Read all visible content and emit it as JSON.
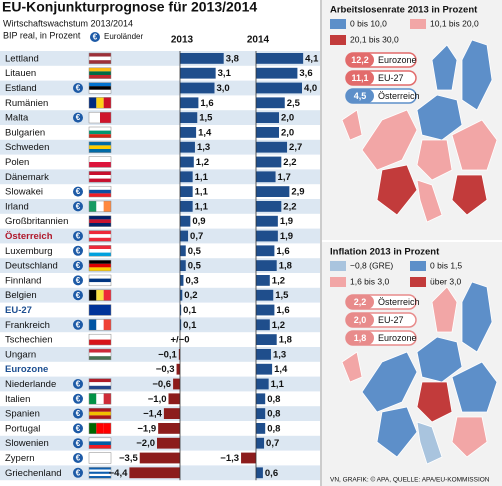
{
  "chart_data": {
    "type": "bar",
    "title": "EU-Konjunkturprognose für 2013/2014",
    "subtitle": "Wirtschaftswachstum 2013/2014",
    "unit_note": "BIP real, in Prozent",
    "euro_symbol": "€",
    "euro_legend": "Euroländer",
    "source": "VN, GRAFIK: © APA, QUELLE: APA/EU-KOMMISSION",
    "categories": [
      "Lettland",
      "Litauen",
      "Estland",
      "Rumänien",
      "Malta",
      "Bulgarien",
      "Schweden",
      "Polen",
      "Dänemark",
      "Slowakei",
      "Irland",
      "Großbritannien",
      "Österreich",
      "Luxemburg",
      "Deutschland",
      "Finnland",
      "Belgien",
      "EU-27",
      "Frankreich",
      "Tschechien",
      "Ungarn",
      "Eurozone",
      "Niederlande",
      "Italien",
      "Spanien",
      "Portugal",
      "Slowenien",
      "Zypern",
      "Griechenland"
    ],
    "euro_members": [
      false,
      false,
      true,
      false,
      true,
      false,
      false,
      false,
      false,
      true,
      true,
      false,
      true,
      true,
      true,
      true,
      true,
      false,
      true,
      false,
      false,
      false,
      true,
      true,
      true,
      true,
      true,
      true,
      true
    ],
    "highlight": [
      {
        "index": 12,
        "color": "#b0182b"
      },
      {
        "index": 17,
        "color": "#1d4f91"
      },
      {
        "index": 21,
        "color": "#1d4f91"
      }
    ],
    "flags": [
      {
        "dir": "h",
        "colors": [
          "#9e3039",
          "#ffffff",
          "#9e3039"
        ]
      },
      {
        "dir": "h",
        "colors": [
          "#fdb913",
          "#006a44",
          "#c1272d"
        ]
      },
      {
        "dir": "h",
        "colors": [
          "#0072ce",
          "#000000",
          "#ffffff"
        ]
      },
      {
        "dir": "v",
        "colors": [
          "#002b7f",
          "#fcd116",
          "#ce1126"
        ]
      },
      {
        "dir": "v",
        "colors": [
          "#ffffff",
          "#cf142b"
        ]
      },
      {
        "dir": "h",
        "colors": [
          "#ffffff",
          "#00966e",
          "#d62612"
        ]
      },
      {
        "dir": "h",
        "colors": [
          "#006aa7",
          "#fecc00",
          "#006aa7"
        ]
      },
      {
        "dir": "h",
        "colors": [
          "#ffffff",
          "#dc143c"
        ]
      },
      {
        "dir": "h",
        "colors": [
          "#c8102e",
          "#ffffff",
          "#c8102e"
        ]
      },
      {
        "dir": "h",
        "colors": [
          "#ffffff",
          "#0b4ea2",
          "#ee1c25"
        ]
      },
      {
        "dir": "v",
        "colors": [
          "#169b62",
          "#ffffff",
          "#ff883e"
        ]
      },
      {
        "dir": "h",
        "colors": [
          "#012169",
          "#c8102e",
          "#012169"
        ]
      },
      {
        "dir": "h",
        "colors": [
          "#ed2939",
          "#ffffff",
          "#ed2939"
        ]
      },
      {
        "dir": "h",
        "colors": [
          "#ed2939",
          "#ffffff",
          "#00a1de"
        ]
      },
      {
        "dir": "h",
        "colors": [
          "#000000",
          "#dd0000",
          "#ffce00"
        ]
      },
      {
        "dir": "h",
        "colors": [
          "#ffffff",
          "#003580",
          "#ffffff"
        ]
      },
      {
        "dir": "v",
        "colors": [
          "#000000",
          "#fae042",
          "#ed2939"
        ]
      },
      {
        "dir": "h",
        "colors": [
          "#003399"
        ]
      },
      {
        "dir": "v",
        "colors": [
          "#0055a4",
          "#ffffff",
          "#ef4135"
        ]
      },
      {
        "dir": "h",
        "colors": [
          "#ffffff",
          "#d7141a"
        ]
      },
      {
        "dir": "h",
        "colors": [
          "#ce2939",
          "#ffffff",
          "#477050"
        ]
      },
      null,
      {
        "dir": "h",
        "colors": [
          "#ae1c28",
          "#ffffff",
          "#21468b"
        ]
      },
      {
        "dir": "v",
        "colors": [
          "#009246",
          "#ffffff",
          "#ce2b37"
        ]
      },
      {
        "dir": "h",
        "colors": [
          "#aa151b",
          "#f1bf00",
          "#aa151b"
        ]
      },
      {
        "dir": "v",
        "colors": [
          "#006600",
          "#ff0000",
          "#ff0000"
        ]
      },
      {
        "dir": "h",
        "colors": [
          "#ffffff",
          "#005da4",
          "#ed1c24"
        ]
      },
      {
        "dir": "h",
        "colors": [
          "#ffffff"
        ]
      },
      {
        "dir": "h",
        "colors": [
          "#0d5eaf",
          "#ffffff",
          "#0d5eaf",
          "#ffffff",
          "#0d5eaf"
        ]
      }
    ],
    "negative_color": "#8c1c1c",
    "series": [
      {
        "name": "2013",
        "color": "#1f4e8c",
        "values": [
          3.8,
          3.1,
          3.0,
          1.6,
          1.5,
          1.4,
          1.3,
          1.2,
          1.1,
          1.1,
          1.1,
          0.9,
          0.7,
          0.5,
          0.5,
          0.3,
          0.2,
          0.1,
          0.1,
          0,
          -0.1,
          -0.3,
          -0.6,
          -1.0,
          -1.4,
          -1.9,
          -2.0,
          -3.5,
          -4.4
        ],
        "value_labels": [
          "3,8",
          "3,1",
          "3,0",
          "1,6",
          "1,5",
          "1,4",
          "1,3",
          "1,2",
          "1,1",
          "1,1",
          "1,1",
          "0,9",
          "0,7",
          "0,5",
          "0,5",
          "0,3",
          "0,2",
          "0,1",
          "0,1",
          "+/−0",
          "−0,1",
          "−0,3",
          "−0,6",
          "−1,0",
          "−1,4",
          "−1,9",
          "−2,0",
          "−3,5",
          "−4,4"
        ]
      },
      {
        "name": "2014",
        "color": "#1f4e8c",
        "values": [
          4.1,
          3.6,
          4.0,
          2.5,
          2.0,
          2.0,
          2.7,
          2.2,
          1.7,
          2.9,
          2.2,
          1.9,
          1.9,
          1.6,
          1.8,
          1.2,
          1.5,
          1.6,
          1.2,
          1.8,
          1.3,
          1.4,
          1.1,
          0.8,
          0.8,
          0.8,
          0.7,
          -1.3,
          0.6
        ],
        "value_labels": [
          "4,1",
          "3,6",
          "4,0",
          "2,5",
          "2,0",
          "2,0",
          "2,7",
          "2,2",
          "1,7",
          "2,9",
          "2,2",
          "1,9",
          "1,9",
          "1,6",
          "1,8",
          "1,2",
          "1,5",
          "1,6",
          "1,2",
          "1,8",
          "1,3",
          "1,4",
          "1,1",
          "0,8",
          "0,8",
          "0,8",
          "0,7",
          "−1,3",
          "0,6"
        ]
      }
    ]
  },
  "maps": [
    {
      "title": "Arbeitslosenrate 2013 in Prozent",
      "legend": [
        {
          "label": "0 bis 10,0",
          "color": "#5d8fc9"
        },
        {
          "label": "10,1 bis 20,0",
          "color": "#f2a6a6"
        },
        {
          "label": "20,1 bis 30,0",
          "color": "#c23b3b"
        }
      ],
      "callouts": [
        {
          "value": 12.2,
          "label": "12,2",
          "name": "Eurozone",
          "color": "#e26b6b"
        },
        {
          "value": 11.1,
          "label": "11,1",
          "name": "EU-27",
          "color": "#e26b6b"
        },
        {
          "value": 4.5,
          "label": "4,5",
          "name": "Österreich",
          "color": "#5d8fc9"
        }
      ]
    },
    {
      "title": "Inflation 2013 in Prozent",
      "legend": [
        {
          "label": "−0,8 (GRE)",
          "color": "#a9c4de"
        },
        {
          "label": "0 bis 1,5",
          "color": "#5d8fc9"
        },
        {
          "label": "1,6 bis 3,0",
          "color": "#f2a6a6"
        },
        {
          "label": "über 3,0",
          "color": "#c23b3b"
        }
      ],
      "callouts": [
        {
          "value": 2.2,
          "label": "2,2",
          "name": "Österreich",
          "color": "#e88b8b"
        },
        {
          "value": 2.0,
          "label": "2,0",
          "name": "EU-27",
          "color": "#e88b8b"
        },
        {
          "value": 1.8,
          "label": "1,8",
          "name": "Eurozone",
          "color": "#e88b8b"
        }
      ]
    }
  ]
}
